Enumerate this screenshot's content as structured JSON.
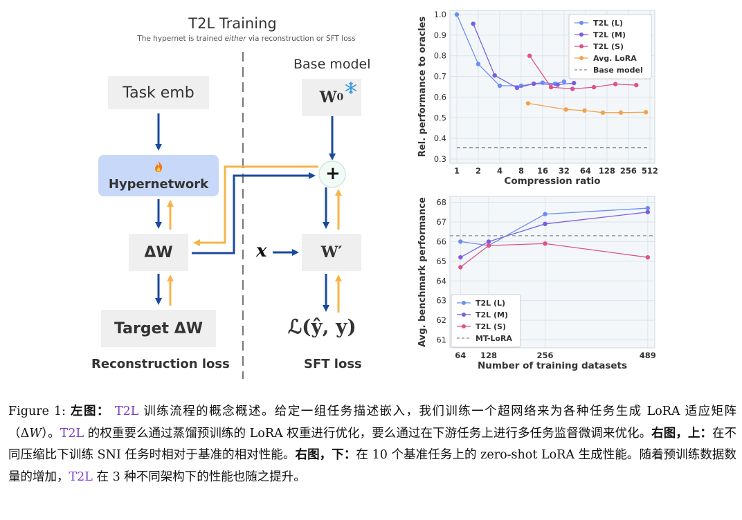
{
  "diagram": {
    "title": "T2L Training",
    "subtitle_pre": "The hypernet is trained ",
    "subtitle_em": "either",
    "subtitle_post": " via reconstruction or SFT loss",
    "task_emb": "Task emb",
    "hypernetwork": "Hypernetwork",
    "fire_icon": "fire-icon",
    "delta_w": "ΔW",
    "target_delta_w": "Target ΔW",
    "reconstruction_loss": "Reconstruction loss",
    "base_model": "Base model",
    "w0_base": "W",
    "w0_sub": "0",
    "snowflake_icon": "snowflake-icon",
    "plus_symbol": "+",
    "x_symbol": "x",
    "w_prime": "W′",
    "loss_expr": "ℒ(ŷ, y)",
    "sft_loss": "SFT loss",
    "colors": {
      "blue": "#1a4aa0",
      "orange": "#f5b54a",
      "hypernet_bg": "#c7d8f8",
      "box_bg": "#efefef"
    }
  },
  "chart_data": [
    {
      "type": "line",
      "xlabel": "Compression ratio",
      "ylabel": "Rel. performance to oracles",
      "x_scale": "log2",
      "xticks": [
        "1",
        "2",
        "4",
        "8",
        "16",
        "32",
        "64",
        "128",
        "256",
        "512"
      ],
      "xlim": [
        0.8,
        600
      ],
      "yticks": [
        "0.3",
        "0.4",
        "0.5",
        "0.6",
        "0.7",
        "0.8",
        "0.9",
        "1.0"
      ],
      "ylim": [
        0.28,
        1.02
      ],
      "grid": true,
      "legend": "top-right",
      "series": [
        {
          "name": "T2L (L)",
          "color": "#6b8ff0",
          "x": [
            1,
            2,
            4,
            8,
            12,
            16,
            24,
            32
          ],
          "y": [
            1.0,
            0.76,
            0.655,
            0.655,
            0.665,
            0.67,
            0.665,
            0.675
          ]
        },
        {
          "name": "T2L (M)",
          "color": "#7b5de0",
          "x": [
            1.7,
            3.4,
            7,
            12,
            26,
            44
          ],
          "y": [
            0.955,
            0.705,
            0.645,
            0.665,
            0.66,
            0.668
          ]
        },
        {
          "name": "T2L (S)",
          "color": "#e0508a",
          "x": [
            10.5,
            21,
            42,
            84,
            168,
            330
          ],
          "y": [
            0.8,
            0.648,
            0.64,
            0.648,
            0.663,
            0.658
          ]
        },
        {
          "name": "Avg. LoRA",
          "color": "#f5a04a",
          "x": [
            10,
            34,
            62,
            112,
            200,
            450
          ],
          "y": [
            0.57,
            0.54,
            0.535,
            0.525,
            0.525,
            0.527
          ]
        },
        {
          "name": "Base model",
          "color": "#888888",
          "dashed": true,
          "x": [
            1,
            512
          ],
          "y": [
            0.355,
            0.355
          ]
        }
      ]
    },
    {
      "type": "line",
      "xlabel": "Number of training datasets",
      "ylabel": "Avg. benchmark performance",
      "xticks": [
        "64",
        "128",
        "256",
        "489"
      ],
      "xlim": [
        40,
        505
      ],
      "yticks": [
        "61",
        "62",
        "63",
        "64",
        "65",
        "66",
        "67",
        "68"
      ],
      "ylim": [
        60.6,
        68.3
      ],
      "grid": true,
      "legend": "bottom-left",
      "series": [
        {
          "name": "T2L (L)",
          "color": "#6b8ff0",
          "x": [
            64,
            128,
            256,
            489
          ],
          "y": [
            66.0,
            65.8,
            67.4,
            67.7
          ]
        },
        {
          "name": "T2L (M)",
          "color": "#7b5de0",
          "x": [
            64,
            128,
            256,
            489
          ],
          "y": [
            65.2,
            66.0,
            66.9,
            67.5
          ]
        },
        {
          "name": "T2L (S)",
          "color": "#e0508a",
          "x": [
            64,
            128,
            256,
            489
          ],
          "y": [
            64.7,
            65.8,
            65.9,
            65.2
          ]
        },
        {
          "name": "MT-LoRA",
          "color": "#888888",
          "dashed": true,
          "x": [
            40,
            505
          ],
          "y": [
            66.3,
            66.3
          ]
        }
      ]
    }
  ],
  "caption": {
    "s1": "Figure 1: ",
    "s2": "左图：",
    "s3": " T2L",
    "s4": " 训练流程的概念概述。给定一组任务描述嵌入，我们训练一个超网络来为各种任务生成 LoRA 适应矩阵（Δ",
    "s4w": "W",
    "s4b": "）。",
    "s5": "T2L",
    "s6": " 的权重要么通过蒸馏预训练的 LoRA 权重进行优化，要么通过在下游任务上进行多任务监督微调来优化。",
    "s7": "右图，上：",
    "s8": "在不同压缩比下训练 SNI 任务时相对于基准的相对性能。",
    "s9": "右图，下：",
    "s10": "在 10 个基准任务上的 zero-shot LoRA 生成性能。随着预训练数据数量的增加，",
    "s11": "T2L",
    "s12": " 在 3 种不同架构下的性能也随之提升。"
  }
}
